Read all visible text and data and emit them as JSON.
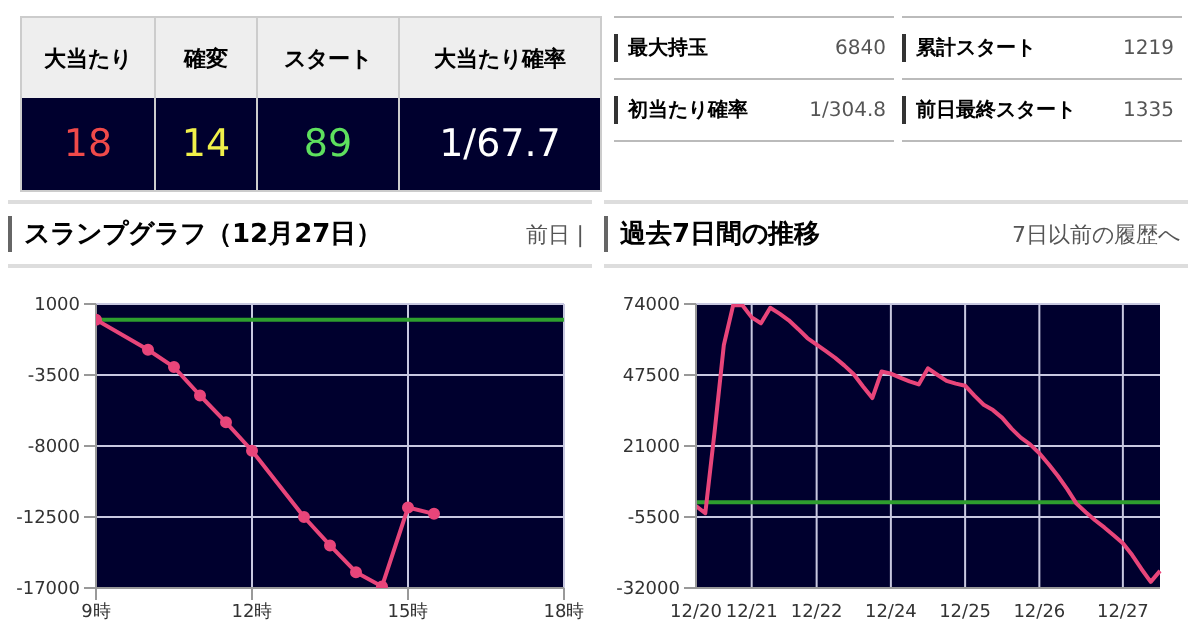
{
  "chart_data": [
    {
      "type": "other",
      "annotations": [
        "大当たり",
        "確変",
        "スタート",
        "大当たり確率",
        "18",
        "14",
        "89",
        "1/67.7"
      ],
      "colors": [
        "#f04a4a",
        "#f0f04a",
        "#5ee05e",
        "#ffffff"
      ]
    },
    {
      "type": "other",
      "annotations": [
        "最大持玉",
        "6840",
        "累計スタート",
        "1219",
        "初当たり確率",
        "1/304.8",
        "前日最終スタート",
        "1335"
      ]
    },
    {
      "type": "line",
      "title": "スランプグラフ（12月27日）",
      "annotations": [
        "前日 |"
      ],
      "xlim": [
        9,
        18
      ],
      "xticks": [
        {
          "value": 9,
          "label": "9時"
        },
        {
          "value": 12,
          "label": "12時"
        },
        {
          "value": 15,
          "label": "15時"
        },
        {
          "value": 18,
          "label": "18時"
        }
      ],
      "ylim": [
        -17000,
        1000
      ],
      "yticks": [
        1000,
        -3500,
        -8000,
        -12500,
        -17000
      ],
      "grid": true,
      "marker": "circle",
      "ref_lines": [
        {
          "axis": "y",
          "value": 0,
          "color": "#2e9e2e"
        }
      ],
      "series": [
        {
          "color": "#e8457a",
          "x": [
            9,
            10,
            10.5,
            11,
            11.5,
            12,
            13,
            13.5,
            14,
            14.5,
            15,
            15.5
          ],
          "values": [
            0,
            -1900,
            -3000,
            -4800,
            -6500,
            -8300,
            -12500,
            -14300,
            -16000,
            -16900,
            -11900,
            -12300
          ]
        }
      ]
    },
    {
      "type": "line",
      "title": "過去7日間の推移",
      "annotations": [
        "7日以前の履歴へ"
      ],
      "categories": [
        "12/20",
        null,
        null,
        null,
        null,
        null,
        "12/21",
        null,
        null,
        null,
        null,
        null,
        null,
        "12/22",
        null,
        null,
        null,
        null,
        null,
        null,
        null,
        "12/24",
        null,
        null,
        null,
        null,
        null,
        null,
        null,
        "12/25",
        null,
        null,
        null,
        null,
        null,
        null,
        null,
        "12/26",
        null,
        null,
        null,
        null,
        null,
        null,
        null,
        null,
        "12/27",
        null,
        null,
        null,
        null
      ],
      "ylim": [
        -32000,
        74000
      ],
      "yticks": [
        74000,
        47500,
        21000,
        -5500,
        -32000
      ],
      "grid": true,
      "marker": "none",
      "ref_lines": [
        {
          "axis": "y",
          "value": 0,
          "color": "#2e9e2e"
        }
      ],
      "series": [
        {
          "color": "#e8457a",
          "values": [
            -1400,
            -4100,
            26200,
            58700,
            73500,
            73500,
            69000,
            66800,
            72600,
            70400,
            67900,
            64700,
            61300,
            58800,
            56400,
            53900,
            51000,
            47800,
            43200,
            38900,
            48800,
            48000,
            46500,
            45100,
            44000,
            50000,
            47600,
            45300,
            44300,
            43500,
            39800,
            36400,
            34400,
            31500,
            27500,
            24100,
            21600,
            18300,
            14200,
            9800,
            4900,
            -500,
            -3700,
            -6700,
            -9400,
            -12300,
            -15300,
            -19700,
            -24900,
            -29700,
            -25600
          ]
        }
      ]
    }
  ]
}
